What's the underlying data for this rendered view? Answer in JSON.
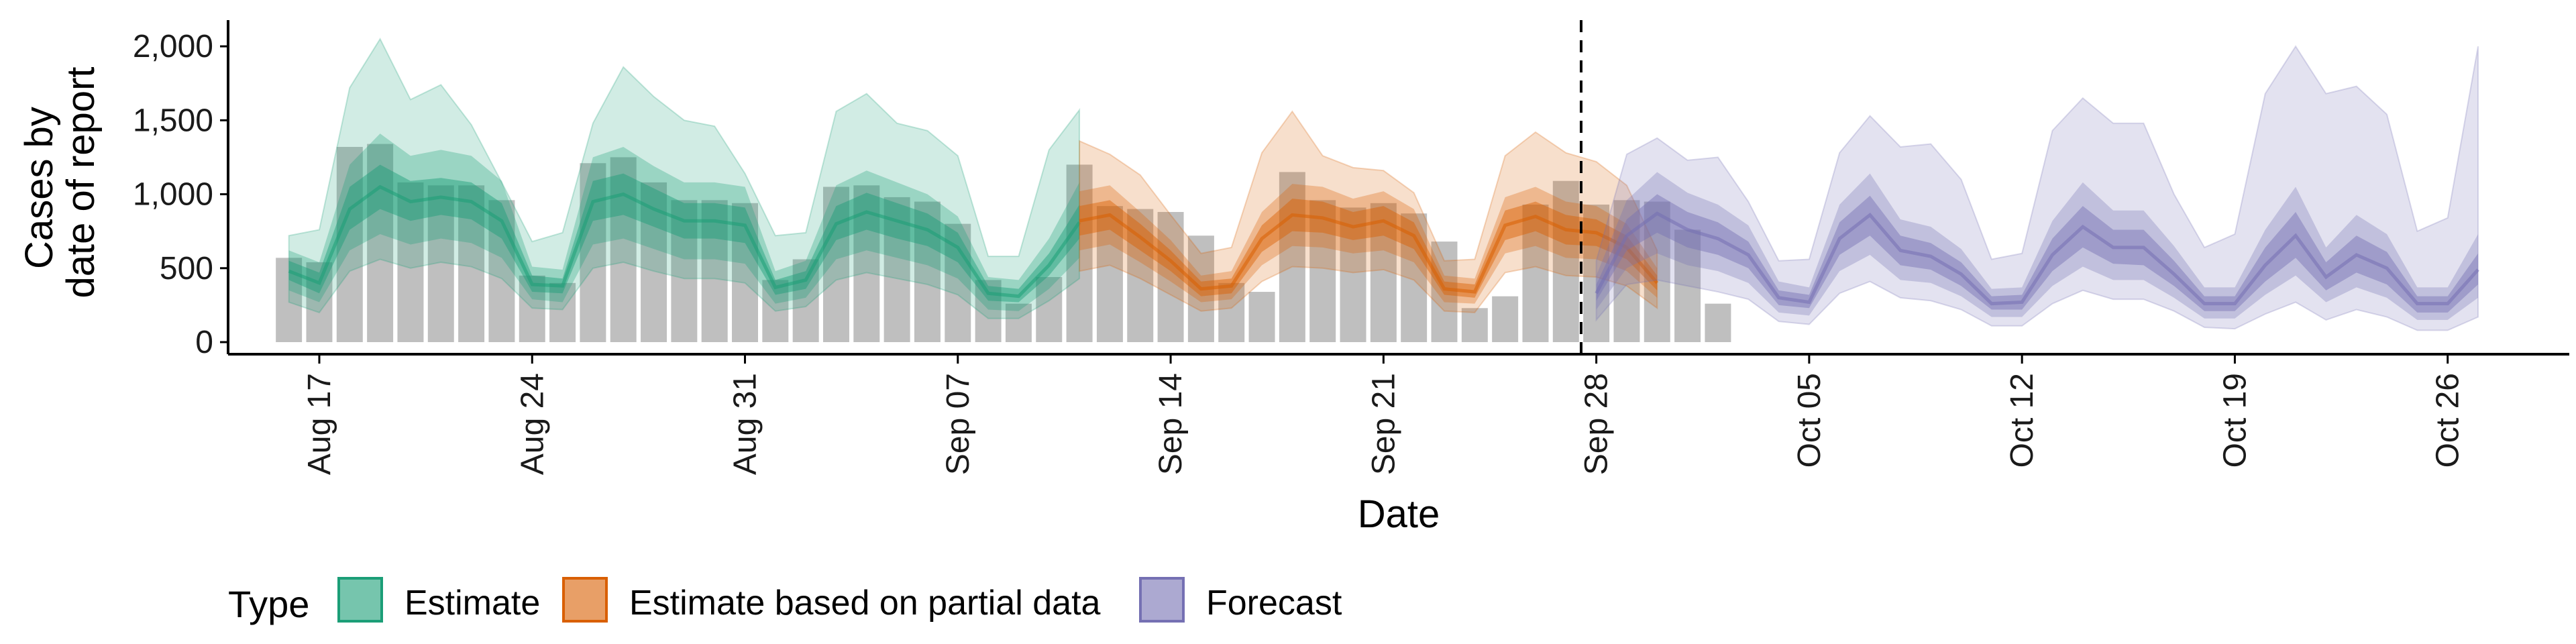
{
  "chart_data": {
    "type": "area",
    "xlabel": "Date",
    "ylabel_lines": [
      "Cases by",
      "date of report"
    ],
    "ylim": [
      0,
      2150
    ],
    "yticks": [
      0,
      500,
      1000,
      1500,
      2000
    ],
    "ytick_labels": [
      "0",
      "500",
      "1,000",
      "1,500",
      "2,000"
    ],
    "x_start_date": "2020-08-14",
    "x_end_date": "2020-10-30",
    "xticks": [
      {
        "date": "2020-08-17",
        "label": "Aug 17"
      },
      {
        "date": "2020-08-24",
        "label": "Aug 24"
      },
      {
        "date": "2020-08-31",
        "label": "Aug 31"
      },
      {
        "date": "2020-09-07",
        "label": "Sep 07"
      },
      {
        "date": "2020-09-14",
        "label": "Sep 14"
      },
      {
        "date": "2020-09-21",
        "label": "Sep 21"
      },
      {
        "date": "2020-09-28",
        "label": "Sep 28"
      },
      {
        "date": "2020-10-05",
        "label": "Oct 05"
      },
      {
        "date": "2020-10-12",
        "label": "Oct 12"
      },
      {
        "date": "2020-10-19",
        "label": "Oct 19"
      },
      {
        "date": "2020-10-26",
        "label": "Oct 26"
      }
    ],
    "forecast_start_date": "2020-09-27",
    "legend_title": "Type",
    "legend_position": "bottom",
    "grid": false,
    "observed_bars": {
      "start_date": "2020-08-16",
      "values": [
        570,
        540,
        1320,
        1340,
        1080,
        1060,
        1060,
        960,
        450,
        400,
        1210,
        1250,
        1080,
        960,
        960,
        940,
        420,
        560,
        1050,
        1060,
        980,
        950,
        800,
        420,
        260,
        440,
        1200,
        920,
        900,
        880,
        720,
        400,
        340,
        1150,
        960,
        910,
        940,
        870,
        680,
        230,
        310,
        930,
        1090,
        930,
        960,
        950,
        760,
        260
      ]
    },
    "series": [
      {
        "name": "Estimate",
        "color": "#1b9e77",
        "start_date": "2020-08-16",
        "median": [
          480,
          400,
          900,
          1050,
          950,
          980,
          950,
          820,
          390,
          380,
          950,
          1000,
          900,
          820,
          820,
          790,
          370,
          420,
          800,
          880,
          820,
          760,
          640,
          330,
          310,
          520,
          810
        ],
        "inner_low": [
          420,
          330,
          760,
          900,
          820,
          860,
          830,
          700,
          340,
          330,
          820,
          860,
          780,
          700,
          700,
          670,
          320,
          360,
          690,
          760,
          700,
          650,
          540,
          280,
          270,
          450,
          700
        ],
        "inner_high": [
          550,
          470,
          1050,
          1200,
          1090,
          1110,
          1080,
          940,
          450,
          430,
          1090,
          1140,
          1040,
          940,
          940,
          910,
          420,
          480,
          920,
          1010,
          940,
          870,
          740,
          380,
          360,
          600,
          930
        ],
        "mid_low": [
          350,
          270,
          620,
          730,
          660,
          700,
          670,
          570,
          290,
          270,
          660,
          700,
          630,
          560,
          560,
          530,
          260,
          300,
          560,
          620,
          570,
          520,
          430,
          220,
          210,
          360,
          570
        ],
        "mid_high": [
          620,
          540,
          1200,
          1410,
          1260,
          1300,
          1260,
          1090,
          510,
          490,
          1250,
          1320,
          1190,
          1080,
          1080,
          1050,
          480,
          550,
          1060,
          1160,
          1080,
          1000,
          850,
          440,
          420,
          700,
          1080
        ],
        "outer_low": [
          270,
          200,
          480,
          560,
          500,
          540,
          510,
          430,
          230,
          220,
          500,
          540,
          480,
          430,
          430,
          400,
          210,
          240,
          420,
          470,
          430,
          390,
          320,
          160,
          160,
          280,
          430
        ],
        "outer_high": [
          720,
          760,
          1720,
          2050,
          1640,
          1740,
          1470,
          1080,
          680,
          740,
          1480,
          1860,
          1660,
          1500,
          1460,
          1140,
          720,
          740,
          1560,
          1680,
          1480,
          1430,
          1260,
          580,
          580,
          1300,
          1570
        ]
      },
      {
        "name": "Estimate based on partial data",
        "color": "#d95f02",
        "start_date": "2020-09-11",
        "median": [
          820,
          860,
          710,
          550,
          360,
          380,
          700,
          860,
          840,
          780,
          820,
          720,
          360,
          340,
          790,
          850,
          760,
          740,
          640,
          400
        ],
        "inner_low": [
          720,
          760,
          620,
          480,
          310,
          330,
          610,
          750,
          740,
          690,
          720,
          630,
          320,
          300,
          690,
          750,
          660,
          650,
          560,
          350
        ],
        "inner_high": [
          920,
          960,
          800,
          620,
          410,
          430,
          790,
          970,
          950,
          880,
          920,
          810,
          410,
          390,
          890,
          950,
          860,
          830,
          720,
          450
        ],
        "mid_low": [
          620,
          660,
          540,
          410,
          270,
          290,
          520,
          650,
          640,
          600,
          620,
          540,
          270,
          260,
          600,
          650,
          570,
          560,
          480,
          300
        ],
        "mid_high": [
          1020,
          1060,
          880,
          690,
          450,
          480,
          880,
          1070,
          1050,
          970,
          1020,
          900,
          450,
          430,
          980,
          1050,
          950,
          920,
          800,
          500
        ],
        "outer_low": [
          480,
          520,
          430,
          320,
          210,
          230,
          410,
          510,
          500,
          470,
          490,
          420,
          210,
          200,
          470,
          510,
          450,
          440,
          380,
          230
        ],
        "outer_high": [
          1360,
          1270,
          1130,
          860,
          600,
          640,
          1280,
          1560,
          1260,
          1180,
          1160,
          1010,
          550,
          560,
          1260,
          1420,
          1280,
          1220,
          1060,
          620
        ]
      },
      {
        "name": "Forecast",
        "color": "#7570b3",
        "start_date": "2020-09-28",
        "median": [
          330,
          720,
          870,
          760,
          700,
          590,
          300,
          270,
          700,
          860,
          620,
          580,
          460,
          260,
          270,
          590,
          780,
          640,
          640,
          460,
          260,
          260,
          520,
          720,
          440,
          590,
          500,
          260,
          260,
          490
        ],
        "inner_low": [
          280,
          620,
          740,
          640,
          590,
          500,
          250,
          230,
          590,
          720,
          520,
          490,
          380,
          220,
          220,
          480,
          640,
          530,
          520,
          380,
          210,
          210,
          410,
          570,
          350,
          470,
          390,
          200,
          200,
          390
        ],
        "inner_high": [
          390,
          830,
          1000,
          880,
          810,
          680,
          350,
          320,
          810,
          990,
          720,
          670,
          540,
          310,
          320,
          700,
          920,
          760,
          760,
          550,
          310,
          310,
          640,
          880,
          540,
          720,
          610,
          310,
          310,
          600
        ],
        "mid_low": [
          220,
          500,
          600,
          520,
          480,
          400,
          200,
          180,
          480,
          590,
          420,
          400,
          310,
          170,
          170,
          380,
          510,
          420,
          420,
          300,
          160,
          160,
          320,
          450,
          270,
          370,
          300,
          150,
          150,
          300
        ],
        "mid_high": [
          450,
          960,
          1150,
          1010,
          930,
          790,
          410,
          370,
          930,
          1140,
          830,
          780,
          630,
          360,
          370,
          820,
          1080,
          890,
          890,
          650,
          370,
          370,
          760,
          1050,
          640,
          860,
          730,
          370,
          370,
          730
        ],
        "outer_low": [
          150,
          390,
          420,
          380,
          340,
          290,
          140,
          120,
          330,
          410,
          300,
          280,
          220,
          110,
          110,
          260,
          350,
          290,
          290,
          210,
          100,
          90,
          190,
          270,
          150,
          220,
          170,
          80,
          80,
          170
        ],
        "outer_high": [
          550,
          1270,
          1380,
          1230,
          1250,
          950,
          550,
          560,
          1280,
          1530,
          1320,
          1340,
          1100,
          560,
          600,
          1430,
          1650,
          1480,
          1480,
          1000,
          640,
          730,
          1680,
          2000,
          1680,
          1730,
          1540,
          750,
          840,
          2000
        ]
      }
    ]
  }
}
